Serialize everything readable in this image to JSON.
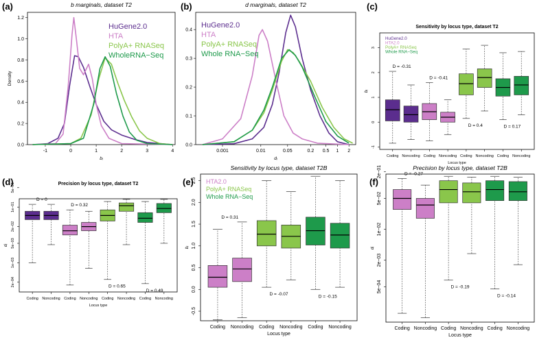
{
  "chart_data": [
    {
      "panel": "(a)",
      "type": "line",
      "title": "b marginals, dataset T2",
      "xlabel": "bᵢ",
      "ylabel": "Density",
      "xlim": [
        -1.7,
        4.1
      ],
      "ylim": [
        0,
        1.25
      ],
      "xticks": [
        "-1",
        "0",
        "1",
        "2",
        "3",
        "4"
      ],
      "yticks": [
        "0.0",
        "0.2",
        "0.4",
        "0.6",
        "0.8",
        "1.0",
        "1.2"
      ],
      "legend": "top-right",
      "series": [
        {
          "name": "HuGene2.0",
          "color": "#5b2d8e",
          "points": [
            [
              -1.5,
              0
            ],
            [
              -0.9,
              0.01
            ],
            [
              -0.5,
              0.06
            ],
            [
              -0.25,
              0.2
            ],
            [
              -0.05,
              0.55
            ],
            [
              0.15,
              0.84
            ],
            [
              0.3,
              0.83
            ],
            [
              0.5,
              0.73
            ],
            [
              0.75,
              0.55
            ],
            [
              1.0,
              0.38
            ],
            [
              1.3,
              0.22
            ],
            [
              1.6,
              0.14
            ],
            [
              2.0,
              0.09
            ],
            [
              2.5,
              0.05
            ],
            [
              3.0,
              0.02
            ],
            [
              4.0,
              0
            ]
          ]
        },
        {
          "name": "HTA",
          "color": "#cc7fc7",
          "points": [
            [
              -1.5,
              0
            ],
            [
              -0.6,
              0.01
            ],
            [
              -0.3,
              0.1
            ],
            [
              -0.1,
              0.55
            ],
            [
              0.05,
              1.04
            ],
            [
              0.12,
              1.2
            ],
            [
              0.22,
              1.0
            ],
            [
              0.35,
              0.72
            ],
            [
              0.5,
              0.66
            ],
            [
              0.7,
              0.76
            ],
            [
              0.85,
              0.62
            ],
            [
              1.0,
              0.38
            ],
            [
              1.2,
              0.18
            ],
            [
              1.5,
              0.06
            ],
            [
              2.0,
              0.01
            ],
            [
              4.0,
              0
            ]
          ]
        },
        {
          "name": "PolyA+ RNASeq",
          "color": "#8ac64b",
          "points": [
            [
              -1.5,
              0
            ],
            [
              0.0,
              0.01
            ],
            [
              0.4,
              0.06
            ],
            [
              0.8,
              0.28
            ],
            [
              1.1,
              0.62
            ],
            [
              1.35,
              0.82
            ],
            [
              1.6,
              0.76
            ],
            [
              1.85,
              0.58
            ],
            [
              2.1,
              0.42
            ],
            [
              2.4,
              0.26
            ],
            [
              2.7,
              0.13
            ],
            [
              3.0,
              0.06
            ],
            [
              3.5,
              0.01
            ],
            [
              4.0,
              0
            ]
          ]
        },
        {
          "name": "WholeRNA−Seq",
          "color": "#1e9a4b",
          "points": [
            [
              -1.5,
              0
            ],
            [
              0.0,
              0.01
            ],
            [
              0.5,
              0.06
            ],
            [
              0.9,
              0.38
            ],
            [
              1.15,
              0.72
            ],
            [
              1.35,
              0.83
            ],
            [
              1.55,
              0.74
            ],
            [
              1.8,
              0.48
            ],
            [
              2.05,
              0.27
            ],
            [
              2.3,
              0.12
            ],
            [
              2.6,
              0.04
            ],
            [
              3.0,
              0.01
            ],
            [
              4.0,
              0
            ]
          ]
        }
      ]
    },
    {
      "panel": "(b)",
      "type": "line",
      "title": "d marginals, dataset T2",
      "xlabel": "dᵢ",
      "ylabel": "",
      "xscale": "log",
      "xlim": [
        0.0002,
        3
      ],
      "ylim": [
        0,
        0.46
      ],
      "xticks": [
        "0.001",
        "0.01",
        "0.05",
        "0.2",
        "0.5",
        "1",
        "2"
      ],
      "yticks": [
        "0.0",
        "0.1",
        "0.2",
        "0.3",
        "0.4"
      ],
      "legend": "top-left",
      "series": [
        {
          "name": "HuGene2.0",
          "color": "#5b2d8e",
          "points": [
            [
              0.0003,
              0
            ],
            [
              0.002,
              0.003
            ],
            [
              0.006,
              0.02
            ],
            [
              0.012,
              0.06
            ],
            [
              0.02,
              0.14
            ],
            [
              0.03,
              0.25
            ],
            [
              0.045,
              0.39
            ],
            [
              0.06,
              0.45
            ],
            [
              0.08,
              0.41
            ],
            [
              0.12,
              0.3
            ],
            [
              0.2,
              0.19
            ],
            [
              0.35,
              0.1
            ],
            [
              0.6,
              0.04
            ],
            [
              1.0,
              0.01
            ],
            [
              2.0,
              0
            ]
          ]
        },
        {
          "name": "HTA",
          "color": "#cc7fc7",
          "points": [
            [
              0.0003,
              0
            ],
            [
              0.001,
              0.02
            ],
            [
              0.003,
              0.09
            ],
            [
              0.006,
              0.24
            ],
            [
              0.009,
              0.38
            ],
            [
              0.011,
              0.4
            ],
            [
              0.015,
              0.36
            ],
            [
              0.025,
              0.22
            ],
            [
              0.04,
              0.1
            ],
            [
              0.07,
              0.04
            ],
            [
              0.12,
              0.02
            ],
            [
              0.3,
              0.005
            ],
            [
              2.0,
              0
            ]
          ]
        },
        {
          "name": "PolyA+ RNASeq",
          "color": "#8ac64b",
          "points": [
            [
              0.0003,
              0
            ],
            [
              0.002,
              0.01
            ],
            [
              0.006,
              0.05
            ],
            [
              0.012,
              0.11
            ],
            [
              0.02,
              0.19
            ],
            [
              0.035,
              0.29
            ],
            [
              0.05,
              0.33
            ],
            [
              0.07,
              0.32
            ],
            [
              0.1,
              0.29
            ],
            [
              0.2,
              0.22
            ],
            [
              0.4,
              0.13
            ],
            [
              0.8,
              0.06
            ],
            [
              1.5,
              0.02
            ],
            [
              2.5,
              0.005
            ]
          ]
        },
        {
          "name": "Whole RNA−Seq",
          "color": "#1e9a4b",
          "points": [
            [
              0.0003,
              0
            ],
            [
              0.002,
              0.01
            ],
            [
              0.006,
              0.05
            ],
            [
              0.012,
              0.12
            ],
            [
              0.02,
              0.2
            ],
            [
              0.035,
              0.3
            ],
            [
              0.055,
              0.33
            ],
            [
              0.08,
              0.31
            ],
            [
              0.12,
              0.27
            ],
            [
              0.25,
              0.17
            ],
            [
              0.5,
              0.08
            ],
            [
              1.0,
              0.03
            ],
            [
              2.0,
              0.005
            ]
          ]
        }
      ]
    },
    {
      "panel": "(c)",
      "type": "box",
      "title": "Sensitivity by locus type, dataset T2",
      "xlabel": "Locus type",
      "ylabel": "bᵢ",
      "ylim": [
        -1.1,
        3.6
      ],
      "yticks": [
        "-1",
        "0",
        "1",
        "2",
        "3"
      ],
      "legend": "top-left",
      "legend_entries": [
        "HuGene2.0",
        "HTA2.0",
        "PolyA+ RNASeq",
        "Whole RNA−Seq"
      ],
      "categories": [
        "Coding",
        "Noncoding",
        "Coding",
        "Noncoding",
        "Coding",
        "Noncoding",
        "Coding",
        "Noncoding"
      ],
      "boxes": [
        {
          "group": "HuGene2.0",
          "color": "#5b2d8e",
          "stats": [
            -0.85,
            0.05,
            0.5,
            0.9,
            2.05
          ]
        },
        {
          "group": "HuGene2.0",
          "color": "#5b2d8e",
          "stats": [
            -0.7,
            0.0,
            0.3,
            0.65,
            1.5
          ]
        },
        {
          "group": "HTA2.0",
          "color": "#cc7fc7",
          "stats": [
            -0.75,
            0.1,
            0.42,
            0.75,
            1.6
          ]
        },
        {
          "group": "HTA2.0",
          "color": "#cc7fc7",
          "stats": [
            -0.5,
            0.0,
            0.2,
            0.4,
            0.9
          ]
        },
        {
          "group": "PolyA+ RNASeq",
          "color": "#8ac64b",
          "stats": [
            0.15,
            1.1,
            1.55,
            1.95,
            2.95
          ]
        },
        {
          "group": "PolyA+ RNASeq",
          "color": "#8ac64b",
          "stats": [
            0.45,
            1.4,
            1.8,
            2.15,
            3.1
          ]
        },
        {
          "group": "Whole RNA−Seq",
          "color": "#1e9a4b",
          "stats": [
            0.1,
            1.05,
            1.4,
            1.75,
            2.8
          ]
        },
        {
          "group": "Whole RNA−Seq",
          "color": "#1e9a4b",
          "stats": [
            0.3,
            1.1,
            1.5,
            1.85,
            2.85
          ]
        }
      ],
      "annotations": [
        {
          "text": "D = -0.31",
          "pair": 0,
          "pos": "above"
        },
        {
          "text": "D = -0.41",
          "pair": 1,
          "pos": "above"
        },
        {
          "text": "D = 0.4",
          "pair": 2,
          "pos": "below"
        },
        {
          "text": "D = 0.17",
          "pair": 3,
          "pos": "below"
        }
      ]
    },
    {
      "panel": "(d)",
      "type": "box",
      "title": "Precision by locus type, dataset T2",
      "xlabel": "Locus type",
      "ylabel": "dᵢ",
      "yscale": "log",
      "ylim": [
        -4.05,
        -0.7
      ],
      "yticks": [
        "5e−01",
        "1e−01",
        "2e−02",
        "5e−03",
        "1e−03",
        "2e−04"
      ],
      "categories": [
        "Coding",
        "Noncoding",
        "Coding",
        "Noncoding",
        "Coding",
        "Noncoding",
        "Coding",
        "Noncoding"
      ],
      "boxes": [
        {
          "color": "#5b2d8e",
          "stats": [
            -3.0,
            -1.45,
            -1.3,
            -1.15,
            -0.9
          ]
        },
        {
          "color": "#5b2d8e",
          "stats": [
            -2.35,
            -1.45,
            -1.3,
            -1.15,
            -0.9
          ]
        },
        {
          "color": "#cc7fc7",
          "stats": [
            -3.8,
            -2.0,
            -1.85,
            -1.65,
            -1.1
          ]
        },
        {
          "color": "#cc7fc7",
          "stats": [
            -3.2,
            -1.85,
            -1.7,
            -1.55,
            -1.15
          ]
        },
        {
          "color": "#8ac64b",
          "stats": [
            -3.6,
            -1.5,
            -1.3,
            -1.1,
            -0.8
          ]
        },
        {
          "color": "#8ac64b",
          "stats": [
            -2.35,
            -1.15,
            -0.95,
            -0.85,
            -0.72
          ]
        },
        {
          "color": "#1e9a4b",
          "stats": [
            -3.75,
            -1.55,
            -1.4,
            -1.2,
            -0.8
          ]
        },
        {
          "color": "#1e9a4b",
          "stats": [
            -2.3,
            -1.2,
            -1.05,
            -0.87,
            -0.72
          ]
        }
      ],
      "annotations": [
        {
          "text": "D = 0",
          "pair": 0,
          "pos": "above"
        },
        {
          "text": "D = 0.32",
          "pair": 1,
          "pos": "above"
        },
        {
          "text": "D = 0.65",
          "pair": 2,
          "pos": "below"
        },
        {
          "text": "D = 0.49",
          "pair": 3,
          "pos": "below"
        }
      ]
    },
    {
      "panel": "(e)",
      "type": "box",
      "title": "Sensitivity by locus type, dataset T2B",
      "xlabel": "Locus type",
      "ylabel": "bᵢ",
      "ylim": [
        -0.72,
        2.65
      ],
      "yticks": [
        "-0.5",
        "0.0",
        "0.5",
        "1.0",
        "1.5",
        "2.0",
        "2.5"
      ],
      "legend": "top-left",
      "legend_entries": [
        "HTA2.0",
        "PolyA+ RNASeq",
        "Whole RNA−Seq"
      ],
      "categories": [
        "Coding",
        "Noncoding",
        "Coding",
        "Noncoding",
        "Coding",
        "Noncoding"
      ],
      "boxes": [
        {
          "group": "HTA2.0",
          "color": "#cc7fc7",
          "stats": [
            -0.7,
            0.05,
            0.28,
            0.55,
            1.38
          ]
        },
        {
          "group": "HTA2.0",
          "color": "#cc7fc7",
          "stats": [
            -0.65,
            0.18,
            0.47,
            0.72,
            1.55
          ]
        },
        {
          "group": "PolyA+ RNASeq",
          "color": "#8ac64b",
          "stats": [
            0.05,
            1.0,
            1.27,
            1.58,
            2.5
          ]
        },
        {
          "group": "PolyA+ RNASeq",
          "color": "#8ac64b",
          "stats": [
            0.22,
            0.95,
            1.22,
            1.48,
            2.25
          ]
        },
        {
          "group": "Whole RNA−Seq",
          "color": "#1e9a4b",
          "stats": [
            0.0,
            1.02,
            1.35,
            1.66,
            2.6
          ]
        },
        {
          "group": "Whole RNA−Seq",
          "color": "#1e9a4b",
          "stats": [
            0.05,
            0.95,
            1.25,
            1.52,
            2.5
          ]
        }
      ],
      "annotations": [
        {
          "text": "D = 0.31",
          "pair": 0,
          "pos": "above"
        },
        {
          "text": "D = -0.07",
          "pair": 1,
          "pos": "below"
        },
        {
          "text": "D = -0.15",
          "pair": 2,
          "pos": "below"
        }
      ]
    },
    {
      "panel": "(f)",
      "type": "box",
      "title": "Precision by locus type, dataset T2B",
      "xlabel": "Locus type",
      "ylabel": "dᵢ",
      "yscale": "log",
      "ylim": [
        -4.1,
        -0.75
      ],
      "yticks": [
        "2e−01",
        "5e−02",
        "1e−02",
        "2e−03",
        "5e−04"
      ],
      "categories": [
        "Coding",
        "Noncoding",
        "Coding",
        "Noncoding",
        "Coding",
        "Noncoding"
      ],
      "boxes": [
        {
          "color": "#cc7fc7",
          "stats": [
            -3.9,
            -1.55,
            -1.3,
            -1.1,
            -0.85
          ]
        },
        {
          "color": "#cc7fc7",
          "stats": [
            -4.0,
            -1.75,
            -1.45,
            -1.3,
            -1.0
          ]
        },
        {
          "color": "#8ac64b",
          "stats": [
            -3.15,
            -1.4,
            -1.1,
            -0.9,
            -0.8
          ]
        },
        {
          "color": "#8ac64b",
          "stats": [
            -2.55,
            -1.4,
            -1.15,
            -0.95,
            -0.82
          ]
        },
        {
          "color": "#1e9a4b",
          "stats": [
            -3.35,
            -1.35,
            -1.1,
            -0.9,
            -0.8
          ]
        },
        {
          "color": "#1e9a4b",
          "stats": [
            -2.8,
            -1.35,
            -1.15,
            -0.92,
            -0.82
          ]
        }
      ],
      "annotations": [
        {
          "text": "D = -0.27",
          "pair": 0,
          "pos": "above"
        },
        {
          "text": "D = -0.19",
          "pair": 1,
          "pos": "below"
        },
        {
          "text": "D = -0.14",
          "pair": 2,
          "pos": "below"
        }
      ]
    }
  ]
}
